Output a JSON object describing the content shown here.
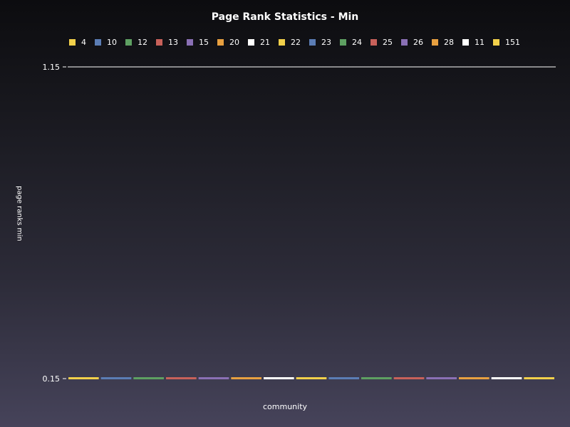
{
  "chart_data": {
    "type": "bar",
    "title": "Page Rank Statistics - Min",
    "xlabel": "community",
    "ylabel": "page ranks min",
    "ylim": [
      0.15,
      1.15
    ],
    "y_ticks": [
      "1.15",
      "0.15"
    ],
    "grid": false,
    "legend_position": "top",
    "categories": [
      "4",
      "10",
      "12",
      "13",
      "15",
      "20",
      "21",
      "22",
      "23",
      "24",
      "25",
      "26",
      "28",
      "11",
      "151"
    ],
    "values": [
      0.15,
      0.15,
      0.15,
      0.15,
      0.15,
      0.15,
      0.15,
      0.15,
      0.15,
      0.15,
      0.15,
      0.15,
      0.15,
      0.15,
      0.15
    ],
    "colors": [
      "#f2d04a",
      "#5b7db5",
      "#5ea062",
      "#c8615a",
      "#8a70b5",
      "#e8a040",
      "#ffffff",
      "#f2d04a",
      "#5b7db5",
      "#5ea062",
      "#c8615a",
      "#8a70b5",
      "#e8a040",
      "#ffffff",
      "#f2d04a"
    ]
  }
}
